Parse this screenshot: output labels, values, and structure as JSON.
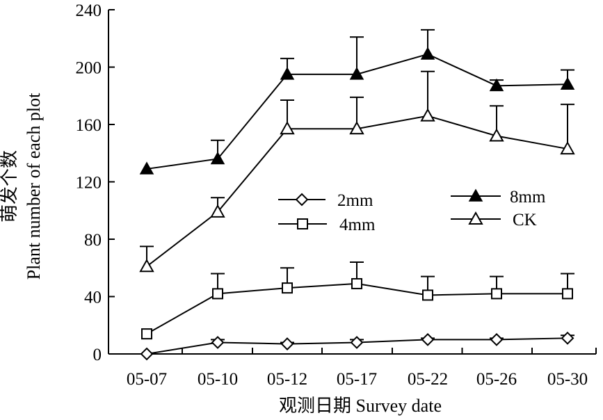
{
  "chart_data": {
    "type": "line",
    "title": "",
    "xlabel": "观测日期 Survey date",
    "ylabel_cn": "萌发个数",
    "ylabel_en": "Plant number of each plot",
    "ylim": [
      0,
      240
    ],
    "yticks": [
      0,
      40,
      80,
      120,
      160,
      200,
      240
    ],
    "categories": [
      "05-07",
      "05-10",
      "05-12",
      "05-17",
      "05-22",
      "05-26",
      "05-30"
    ],
    "grid": false,
    "series": [
      {
        "name": "2mm",
        "marker": "diamond-open",
        "values": [
          0,
          8,
          7,
          8,
          10,
          10,
          11
        ],
        "errors": [
          0,
          2,
          1,
          2,
          1,
          1,
          2
        ]
      },
      {
        "name": "4mm",
        "marker": "square-open",
        "values": [
          14,
          42,
          46,
          49,
          41,
          42,
          42
        ],
        "errors": [
          0,
          14,
          14,
          15,
          13,
          12,
          14
        ]
      },
      {
        "name": "8mm",
        "marker": "triangle-filled",
        "values": [
          129,
          136,
          195,
          195,
          209,
          187,
          188
        ],
        "errors": [
          0,
          13,
          11,
          26,
          17,
          4,
          10
        ]
      },
      {
        "name": "CK",
        "marker": "triangle-open",
        "values": [
          61,
          99,
          157,
          157,
          166,
          152,
          143
        ],
        "errors": [
          14,
          10,
          20,
          22,
          31,
          21,
          31
        ]
      }
    ],
    "legend": {
      "placement": "center-right"
    }
  }
}
